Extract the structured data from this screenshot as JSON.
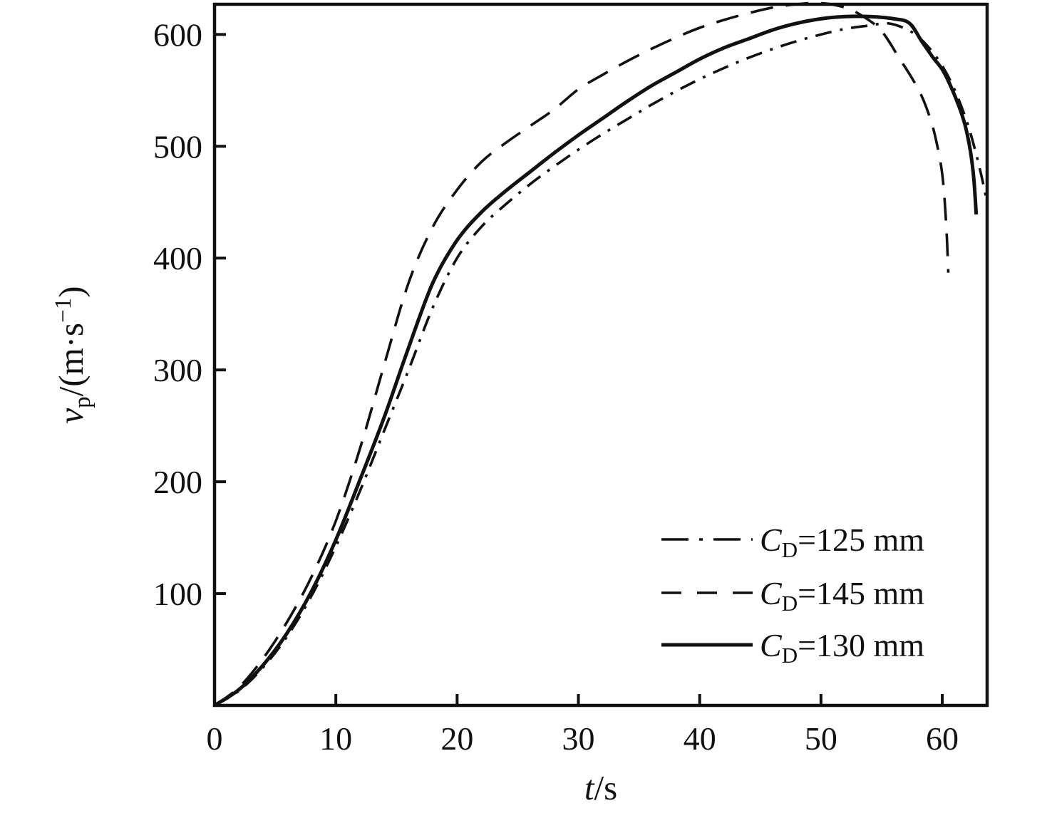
{
  "chart_data": {
    "type": "line",
    "title": "",
    "xlabel_parts": {
      "var": "t",
      "rest": "/s"
    },
    "ylabel_parts": {
      "var": "v",
      "sub": "p",
      "mid": "/(m·s",
      "sup": "−1",
      "end": ")"
    },
    "x_ticks": [
      "0",
      "10",
      "20",
      "30",
      "40",
      "50",
      "60"
    ],
    "x_tick_values": [
      0,
      10,
      20,
      30,
      40,
      50,
      60
    ],
    "y_ticks": [
      "100",
      "200",
      "300",
      "400",
      "500",
      "600"
    ],
    "y_tick_values": [
      100,
      200,
      300,
      400,
      500,
      600
    ],
    "xlim": [
      0,
      63.7
    ],
    "ylim": [
      0,
      627
    ],
    "grid": false,
    "legend_position": "lower right",
    "line_color": "#111111",
    "series": [
      {
        "name": "CD=125 mm",
        "label_parts": {
          "symbol": "C",
          "sub": "D",
          "rest": "=125 mm"
        },
        "style": "dashdot",
        "points": [
          [
            0,
            0
          ],
          [
            2,
            13
          ],
          [
            4,
            34
          ],
          [
            6,
            62
          ],
          [
            8,
            98
          ],
          [
            10,
            142
          ],
          [
            12,
            192
          ],
          [
            14,
            246
          ],
          [
            16,
            300
          ],
          [
            18,
            356
          ],
          [
            20,
            400
          ],
          [
            22,
            428
          ],
          [
            24,
            448
          ],
          [
            26,
            466
          ],
          [
            28,
            482
          ],
          [
            30,
            497
          ],
          [
            32,
            511
          ],
          [
            34,
            524
          ],
          [
            36,
            537
          ],
          [
            38,
            549
          ],
          [
            40,
            560
          ],
          [
            42,
            570
          ],
          [
            44,
            579
          ],
          [
            46,
            587
          ],
          [
            48,
            594
          ],
          [
            50,
            600
          ],
          [
            52,
            605
          ],
          [
            54,
            608
          ],
          [
            55.5,
            610
          ],
          [
            57,
            605
          ],
          [
            58,
            598
          ],
          [
            59,
            587
          ],
          [
            60,
            572
          ],
          [
            61,
            551
          ],
          [
            62,
            523
          ],
          [
            62.7,
            497
          ],
          [
            63.2,
            475
          ],
          [
            63.6,
            455
          ]
        ]
      },
      {
        "name": "CD=145 mm",
        "label_parts": {
          "symbol": "C",
          "sub": "D",
          "rest": "=145 mm"
        },
        "style": "dashed",
        "points": [
          [
            0,
            0
          ],
          [
            2,
            16
          ],
          [
            4,
            42
          ],
          [
            6,
            75
          ],
          [
            8,
            115
          ],
          [
            10,
            165
          ],
          [
            12,
            230
          ],
          [
            14,
            305
          ],
          [
            16,
            378
          ],
          [
            18,
            428
          ],
          [
            20,
            461
          ],
          [
            22,
            486
          ],
          [
            24,
            503
          ],
          [
            26,
            518
          ],
          [
            28,
            533
          ],
          [
            30,
            551
          ],
          [
            32,
            564
          ],
          [
            34,
            576
          ],
          [
            36,
            587
          ],
          [
            38,
            597
          ],
          [
            40,
            606
          ],
          [
            42,
            613
          ],
          [
            44,
            619
          ],
          [
            46,
            624
          ],
          [
            48,
            627
          ],
          [
            50,
            628
          ],
          [
            52,
            624
          ],
          [
            53.5,
            616
          ],
          [
            55,
            603
          ],
          [
            56.5,
            578
          ],
          [
            57.5,
            561
          ],
          [
            58.3,
            545
          ],
          [
            59,
            525
          ],
          [
            59.5,
            505
          ],
          [
            60,
            475
          ],
          [
            60.3,
            435
          ],
          [
            60.5,
            387
          ]
        ]
      },
      {
        "name": "CD=130 mm",
        "label_parts": {
          "symbol": "C",
          "sub": "D",
          "rest": "=130 mm"
        },
        "style": "solid",
        "points": [
          [
            0,
            0
          ],
          [
            2,
            14
          ],
          [
            4,
            36
          ],
          [
            6,
            65
          ],
          [
            8,
            102
          ],
          [
            10,
            148
          ],
          [
            12,
            202
          ],
          [
            14,
            258
          ],
          [
            16,
            320
          ],
          [
            18,
            378
          ],
          [
            20,
            416
          ],
          [
            22,
            441
          ],
          [
            24,
            460
          ],
          [
            26,
            477
          ],
          [
            28,
            494
          ],
          [
            30,
            510
          ],
          [
            32,
            525
          ],
          [
            34,
            540
          ],
          [
            36,
            554
          ],
          [
            38,
            566
          ],
          [
            40,
            578
          ],
          [
            42,
            588
          ],
          [
            44,
            596
          ],
          [
            46,
            604
          ],
          [
            48,
            610
          ],
          [
            50,
            614
          ],
          [
            52,
            616
          ],
          [
            54,
            616
          ],
          [
            56,
            614
          ],
          [
            57.3,
            610
          ],
          [
            58.3,
            594
          ],
          [
            59.2,
            580
          ],
          [
            60.1,
            567
          ],
          [
            61,
            546
          ],
          [
            61.8,
            522
          ],
          [
            62.3,
            497
          ],
          [
            62.6,
            471
          ],
          [
            62.8,
            439
          ]
        ]
      }
    ]
  },
  "colors": {
    "background": "#ffffff",
    "line": "#111111",
    "text": "#111111"
  }
}
